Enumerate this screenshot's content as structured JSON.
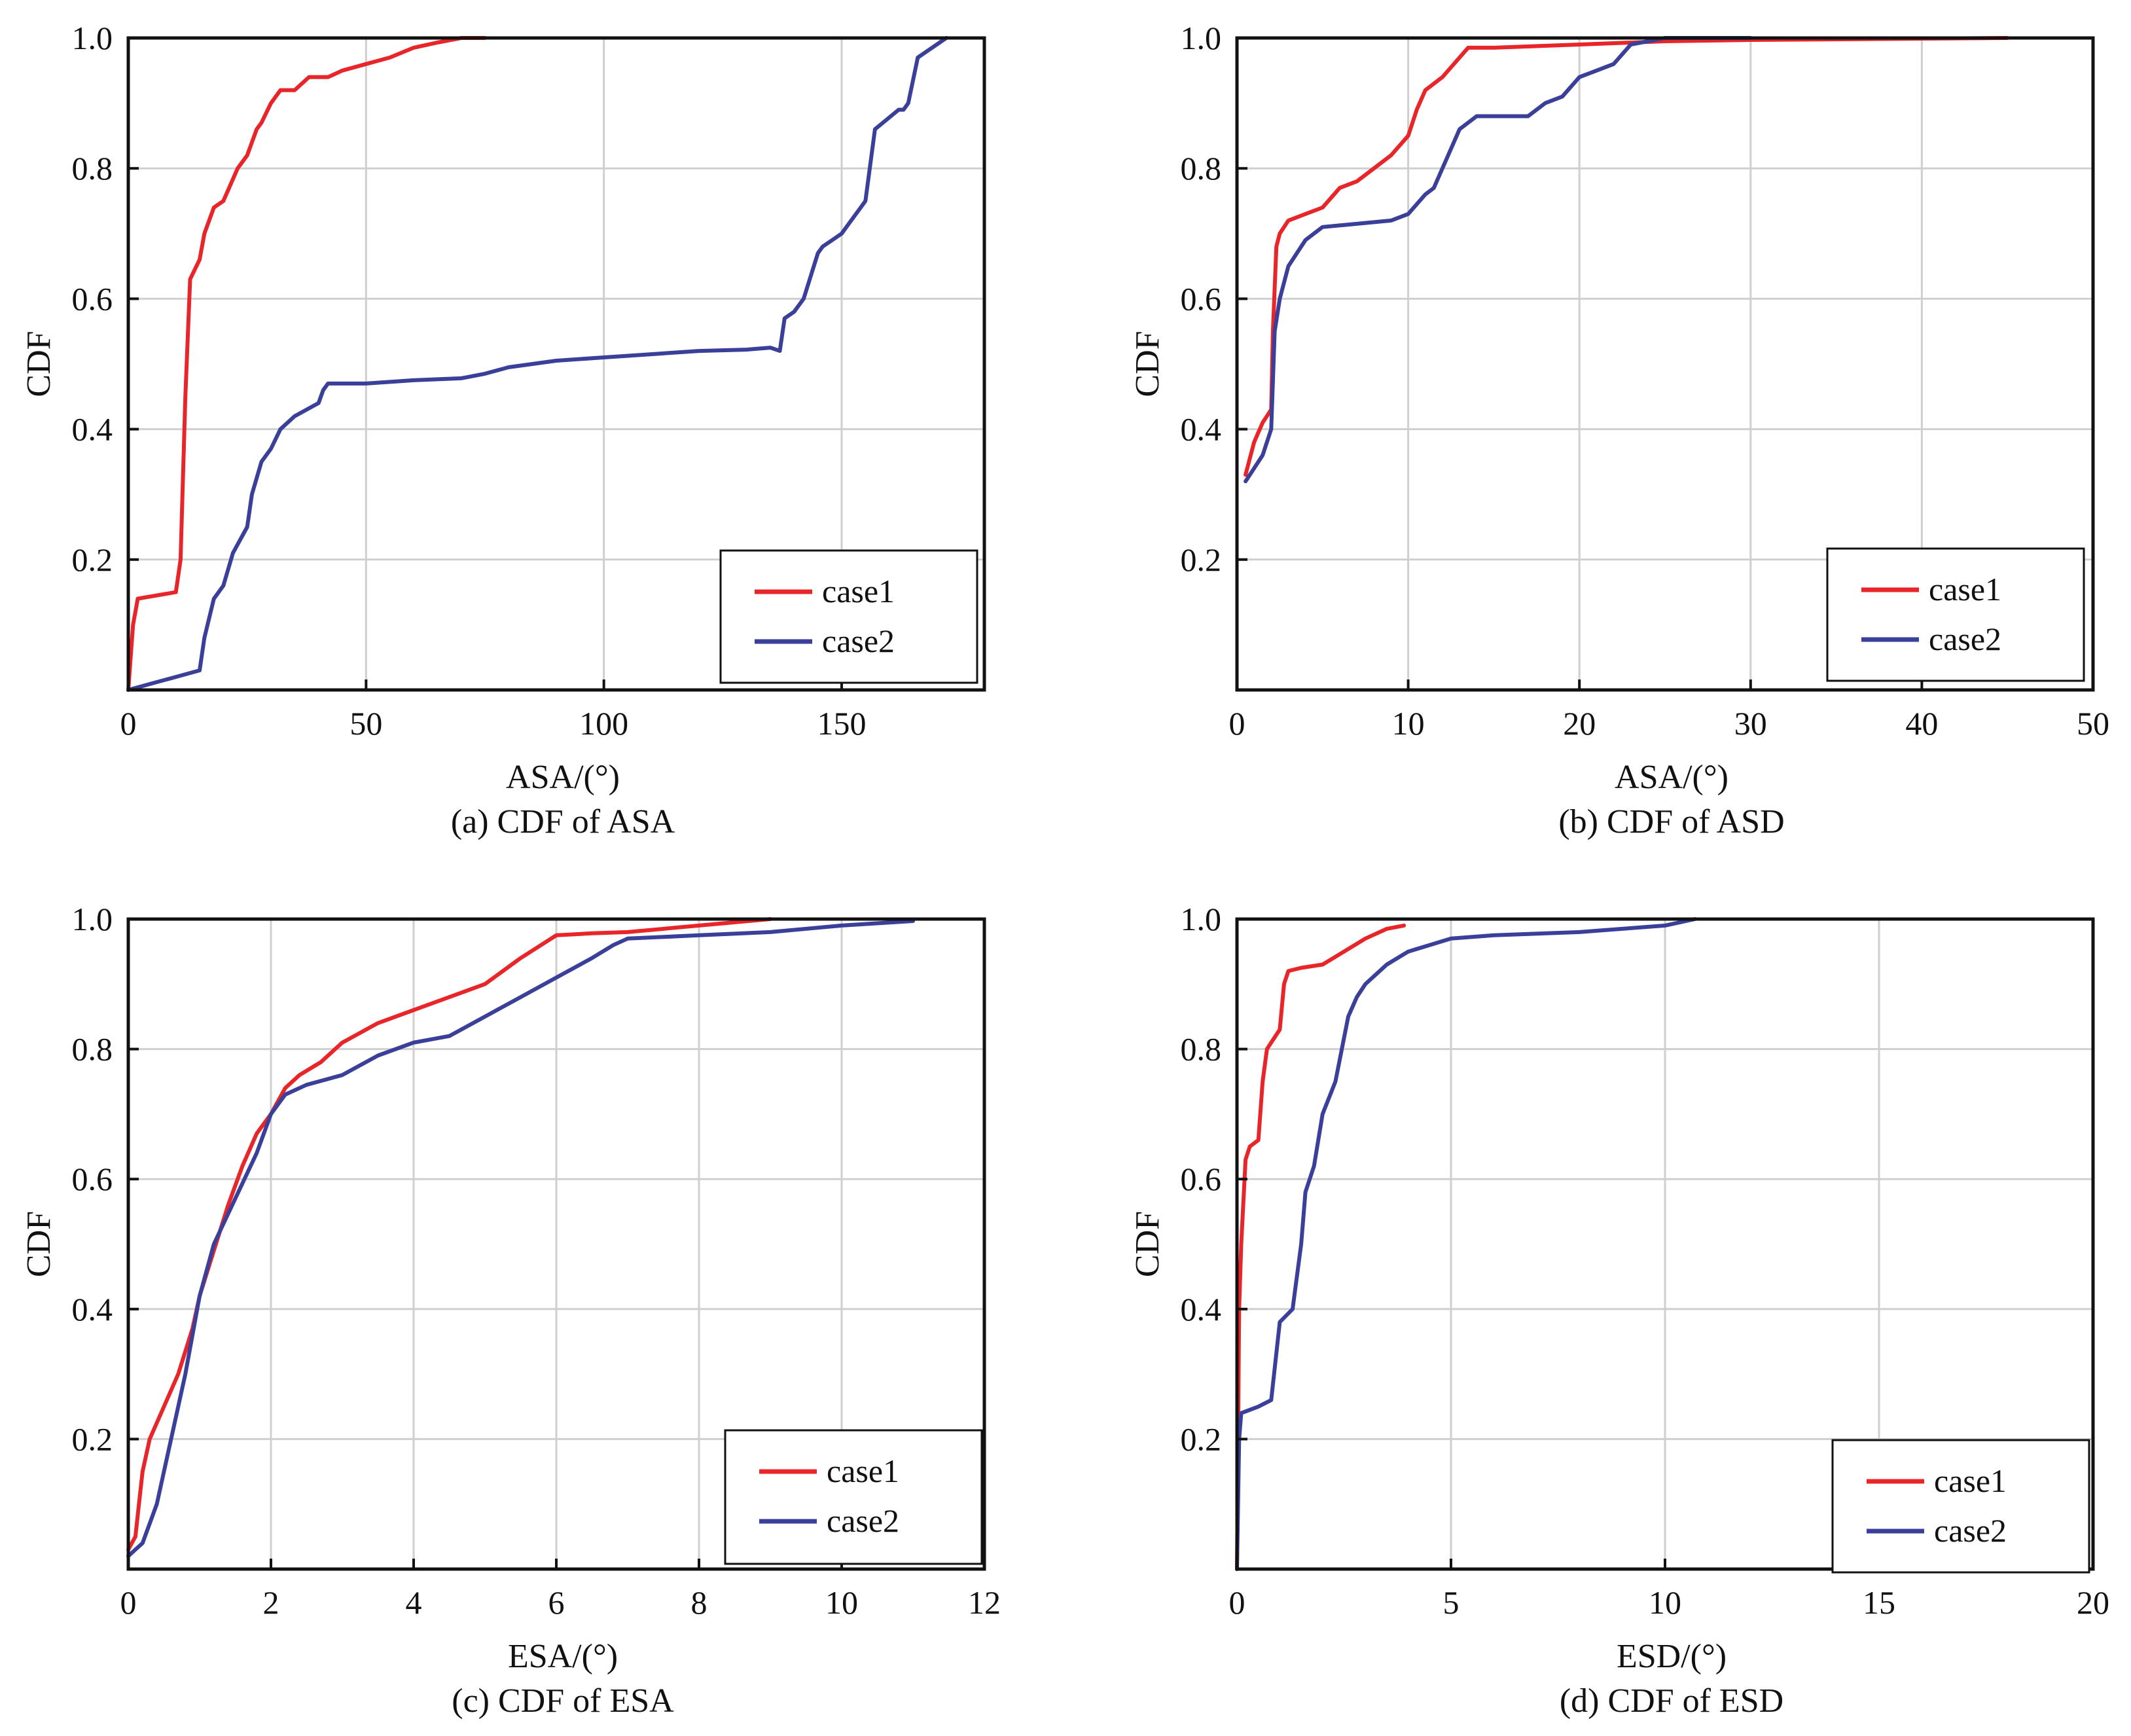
{
  "colors": {
    "case1": "#e8262a",
    "case2": "#3a3f9a",
    "grid": "#cfcfcf",
    "axis": "#111111"
  },
  "chart_data": [
    {
      "type": "line",
      "caption": "(a) CDF of ASA",
      "xlabel": "ASA/(°)",
      "ylabel": "CDF",
      "xlim": [
        0,
        180
      ],
      "ylim": [
        0,
        1
      ],
      "xticks": [
        0,
        50,
        100,
        150
      ],
      "yticks": [
        0.2,
        0.4,
        0.6,
        0.8,
        1.0
      ],
      "grid": true,
      "legend_position": "bottom-right",
      "series": [
        {
          "name": "case1",
          "color": "#e8262a",
          "x": [
            0,
            1,
            2,
            10,
            11,
            12,
            13,
            15,
            16,
            18,
            20,
            23,
            25,
            27,
            28,
            30,
            32,
            35,
            38,
            42,
            45,
            50,
            55,
            60,
            65,
            70,
            75
          ],
          "y": [
            0,
            0.1,
            0.14,
            0.15,
            0.2,
            0.45,
            0.63,
            0.66,
            0.7,
            0.74,
            0.75,
            0.8,
            0.82,
            0.86,
            0.87,
            0.9,
            0.92,
            0.92,
            0.94,
            0.94,
            0.95,
            0.96,
            0.97,
            0.985,
            0.993,
            1.0,
            1.0
          ]
        },
        {
          "name": "case2",
          "color": "#3a3f9a",
          "x": [
            0,
            5,
            10,
            15,
            16,
            18,
            20,
            22,
            25,
            26,
            28,
            30,
            32,
            35,
            40,
            41,
            42,
            50,
            60,
            70,
            75,
            80,
            90,
            100,
            110,
            120,
            130,
            135,
            137,
            138,
            140,
            142,
            145,
            146,
            148,
            150,
            152,
            154,
            155,
            157,
            162,
            163,
            164,
            166,
            170,
            172
          ],
          "y": [
            0,
            0.01,
            0.02,
            0.03,
            0.08,
            0.14,
            0.16,
            0.21,
            0.25,
            0.3,
            0.35,
            0.37,
            0.4,
            0.42,
            0.44,
            0.46,
            0.47,
            0.47,
            0.475,
            0.478,
            0.485,
            0.495,
            0.505,
            0.51,
            0.515,
            0.52,
            0.522,
            0.525,
            0.52,
            0.57,
            0.58,
            0.6,
            0.67,
            0.68,
            0.69,
            0.7,
            0.72,
            0.74,
            0.75,
            0.86,
            0.89,
            0.89,
            0.9,
            0.97,
            0.99,
            1.0
          ]
        }
      ]
    },
    {
      "type": "line",
      "caption": "(b) CDF of ASD",
      "xlabel": "ASA/(°)",
      "ylabel": "CDF",
      "xlim": [
        0,
        50
      ],
      "ylim": [
        0,
        1
      ],
      "xticks": [
        0,
        10,
        20,
        30,
        40,
        50
      ],
      "yticks": [
        0.2,
        0.4,
        0.6,
        0.8,
        1.0
      ],
      "grid": true,
      "legend_position": "bottom-right",
      "series": [
        {
          "name": "case1",
          "color": "#e8262a",
          "x": [
            0.5,
            0.7,
            1.0,
            1.5,
            2.0,
            2.1,
            2.3,
            2.5,
            3.0,
            4.0,
            5.0,
            6.0,
            7.0,
            8.0,
            9.0,
            10.0,
            10.5,
            11.0,
            12.0,
            13.0,
            13.5,
            15.0,
            20.0,
            25.0,
            30.0,
            40.0,
            45.0
          ],
          "y": [
            0.33,
            0.35,
            0.38,
            0.41,
            0.43,
            0.55,
            0.68,
            0.7,
            0.72,
            0.73,
            0.74,
            0.77,
            0.78,
            0.8,
            0.82,
            0.85,
            0.89,
            0.92,
            0.94,
            0.97,
            0.985,
            0.985,
            0.99,
            0.995,
            0.997,
            0.999,
            1.0
          ]
        },
        {
          "name": "case2",
          "color": "#3a3f9a",
          "x": [
            0.5,
            1.0,
            1.5,
            2.0,
            2.2,
            2.5,
            3.0,
            4.0,
            5.0,
            7.0,
            9.0,
            10.0,
            11.0,
            11.5,
            12.0,
            13.0,
            14.0,
            15.0,
            17.0,
            18.0,
            19.0,
            20.0,
            21.0,
            22.0,
            23.0,
            25.0,
            30.0
          ],
          "y": [
            0.32,
            0.34,
            0.36,
            0.4,
            0.55,
            0.6,
            0.65,
            0.69,
            0.71,
            0.715,
            0.72,
            0.73,
            0.76,
            0.77,
            0.8,
            0.86,
            0.88,
            0.88,
            0.88,
            0.9,
            0.91,
            0.94,
            0.95,
            0.96,
            0.99,
            1.0,
            1.0
          ]
        }
      ]
    },
    {
      "type": "line",
      "caption": "(c) CDF of ESA",
      "xlabel": "ESA/(°)",
      "ylabel": "CDF",
      "xlim": [
        0,
        12
      ],
      "ylim": [
        0,
        1
      ],
      "xticks": [
        0,
        2,
        4,
        6,
        8,
        10,
        12
      ],
      "yticks": [
        0.2,
        0.4,
        0.6,
        0.8,
        1.0
      ],
      "grid": true,
      "legend_position": "bottom-right",
      "series": [
        {
          "name": "case1",
          "color": "#e8262a",
          "x": [
            0,
            0.1,
            0.15,
            0.2,
            0.3,
            0.5,
            0.7,
            0.9,
            1.0,
            1.2,
            1.4,
            1.6,
            1.8,
            2.0,
            2.2,
            2.4,
            2.7,
            3.0,
            3.5,
            4.0,
            4.5,
            5.0,
            5.5,
            6.0,
            6.5,
            7.0,
            8.0,
            9.0
          ],
          "y": [
            0.03,
            0.05,
            0.1,
            0.15,
            0.2,
            0.25,
            0.3,
            0.37,
            0.42,
            0.49,
            0.56,
            0.62,
            0.67,
            0.7,
            0.74,
            0.76,
            0.78,
            0.81,
            0.84,
            0.86,
            0.88,
            0.9,
            0.94,
            0.975,
            0.978,
            0.98,
            0.99,
            1.0
          ]
        },
        {
          "name": "case2",
          "color": "#3a3f9a",
          "x": [
            0,
            0.2,
            0.4,
            0.6,
            0.8,
            1.0,
            1.2,
            1.5,
            1.8,
            2.0,
            2.2,
            2.5,
            3.0,
            3.5,
            4.0,
            4.5,
            5.0,
            5.5,
            6.0,
            6.5,
            6.8,
            7.0,
            8.0,
            9.0,
            10.0,
            11.0
          ],
          "y": [
            0.02,
            0.04,
            0.1,
            0.2,
            0.3,
            0.42,
            0.5,
            0.57,
            0.64,
            0.7,
            0.73,
            0.745,
            0.76,
            0.79,
            0.81,
            0.82,
            0.85,
            0.88,
            0.91,
            0.94,
            0.96,
            0.97,
            0.975,
            0.98,
            0.99,
            0.997
          ]
        }
      ]
    },
    {
      "type": "line",
      "caption": "(d) CDF of ESD",
      "xlabel": "ESD/(°)",
      "ylabel": "CDF",
      "xlim": [
        0,
        20
      ],
      "ylim": [
        0,
        1
      ],
      "xticks": [
        0,
        5,
        10,
        15,
        20
      ],
      "yticks": [
        0.2,
        0.4,
        0.6,
        0.8,
        1.0
      ],
      "grid": true,
      "legend_position": "bottom-right",
      "series": [
        {
          "name": "case1",
          "color": "#e8262a",
          "x": [
            0,
            0.05,
            0.1,
            0.2,
            0.3,
            0.5,
            0.6,
            0.7,
            0.8,
            1.0,
            1.1,
            1.2,
            1.5,
            2.0,
            2.5,
            3.0,
            3.5,
            3.9
          ],
          "y": [
            0.0,
            0.4,
            0.5,
            0.63,
            0.65,
            0.66,
            0.75,
            0.8,
            0.81,
            0.83,
            0.9,
            0.92,
            0.925,
            0.93,
            0.95,
            0.97,
            0.985,
            0.99
          ]
        },
        {
          "name": "case2",
          "color": "#3a3f9a",
          "x": [
            0,
            0.05,
            0.1,
            0.5,
            0.8,
            1.0,
            1.3,
            1.5,
            1.6,
            1.8,
            2.0,
            2.3,
            2.6,
            2.8,
            3.0,
            3.5,
            4.0,
            4.5,
            5.0,
            6.0,
            8.0,
            10.0,
            10.7
          ],
          "y": [
            0.0,
            0.2,
            0.24,
            0.25,
            0.26,
            0.38,
            0.4,
            0.5,
            0.58,
            0.62,
            0.7,
            0.75,
            0.85,
            0.88,
            0.9,
            0.93,
            0.95,
            0.96,
            0.97,
            0.975,
            0.98,
            0.99,
            1.0
          ]
        }
      ]
    }
  ]
}
